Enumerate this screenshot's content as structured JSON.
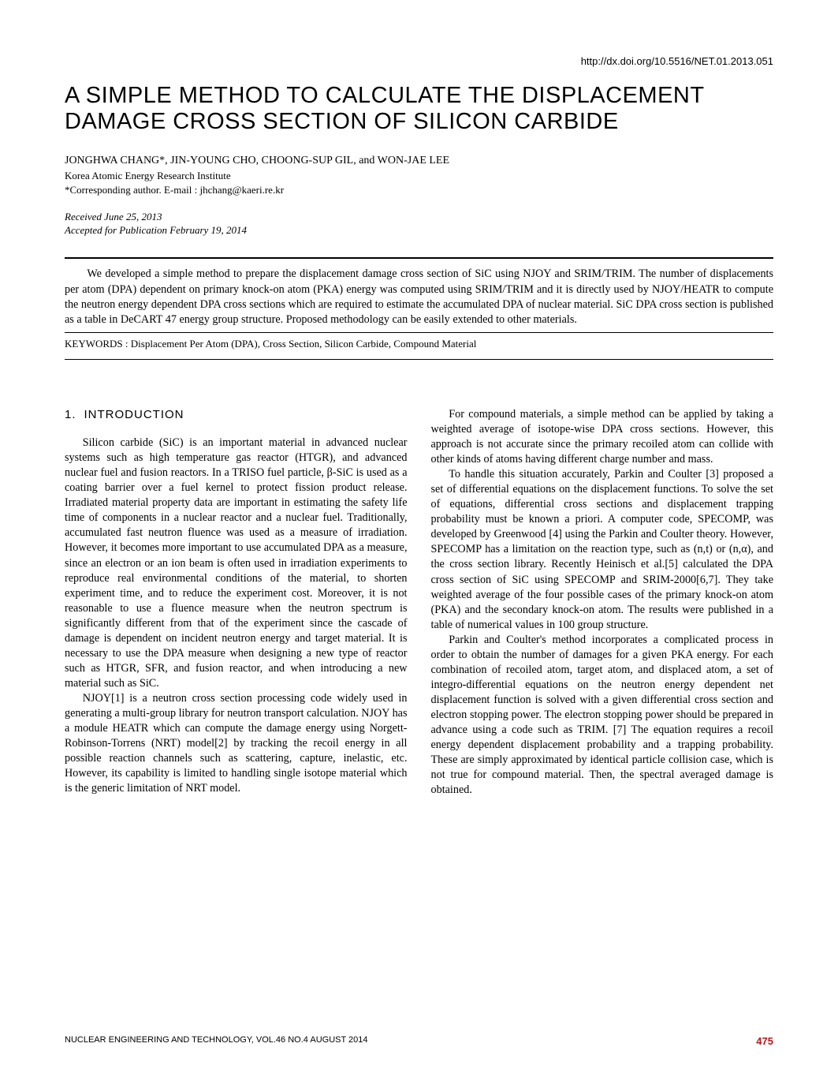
{
  "doi": "http://dx.doi.org/10.5516/NET.01.2013.051",
  "title": "A SIMPLE METHOD TO CALCULATE THE DISPLACEMENT DAMAGE CROSS SECTION OF SILICON CARBIDE",
  "authors": "JONGHWA CHANG*, JIN-YOUNG CHO, CHOONG-SUP GIL, and WON-JAE LEE",
  "affiliation": "Korea Atomic Energy Research Institute",
  "corresponding": "*Corresponding author. E-mail : jhchang@kaeri.re.kr",
  "received": "Received June 25, 2013",
  "accepted": "Accepted for Publication February 19, 2014",
  "abstract": "We developed a simple method to prepare the displacement damage cross section of SiC using NJOY and SRIM/TRIM. The number of displacements per atom (DPA) dependent on primary knock-on atom (PKA) energy was computed using SRIM/TRIM and it is directly used by NJOY/HEATR to compute the neutron energy dependent DPA cross sections which are required to estimate the accumulated DPA of nuclear material. SiC DPA cross section is published as a table in DeCART 47 energy group structure. Proposed methodology can be easily extended to other materials.",
  "keywords_label": "KEYWORDS : ",
  "keywords": "Displacement Per Atom (DPA), Cross Section, Silicon Carbide, Compound Material",
  "section1_num": "1.",
  "section1_title": "INTRODUCTION",
  "col1_p1": "Silicon carbide (SiC) is an important material in advanced nuclear systems such as high temperature gas reactor (HTGR), and advanced nuclear fuel and fusion reactors. In a TRISO fuel particle, β-SiC is used as a coating barrier over a fuel kernel to protect fission product release. Irradiated material property data are important in estimating the safety life time of components in a nuclear reactor and a nuclear fuel. Traditionally, accumulated fast neutron fluence was used as a measure of irradiation. However, it becomes more important to use accumulated DPA as a measure, since an electron or an ion beam is often used in irradiation experiments to reproduce real environmental conditions of the material, to shorten experiment time, and to reduce the experiment cost. Moreover, it is not reasonable to use a fluence measure when the neutron spectrum is significantly different from that of the experiment since the cascade of damage is dependent on incident neutron energy and target material. It is necessary to use the DPA measure when designing a new type of reactor such as HTGR, SFR, and fusion reactor, and when introducing a new material such as SiC.",
  "col1_p2": "NJOY[1] is a neutron cross section processing code widely used in generating a multi-group library for neutron transport calculation. NJOY has a module HEATR which can compute the damage energy using Norgett-Robinson-Torrens (NRT) model[2] by tracking the recoil energy in all possible reaction channels such as scattering, capture, inelastic, etc. However, its capability is limited to handling single isotope material which is the generic limitation of NRT model.",
  "col2_p1": "For compound materials, a simple method can be applied by taking a weighted average of isotope-wise DPA cross sections. However, this approach is not accurate since the primary recoiled atom can collide with other kinds of atoms having different charge number and mass.",
  "col2_p2": "To handle this situation accurately, Parkin and Coulter [3] proposed a set of differential equations on the displacement functions. To solve the set of equations, differential cross sections and displacement trapping probability must be known a priori. A computer code, SPECOMP, was developed by Greenwood [4] using the Parkin and Coulter theory. However, SPECOMP has a limitation on the reaction type, such as (n,t) or (n,α), and the cross section library. Recently Heinisch et al.[5] calculated the DPA cross section of SiC using SPECOMP and SRIM-2000[6,7]. They take weighted average of the four possible cases of the primary knock-on atom (PKA) and the secondary knock-on atom. The results were published in a table of numerical values in 100 group structure.",
  "col2_p3": "Parkin and Coulter's method incorporates a complicated process in order to obtain the number of damages for a given PKA energy. For each combination of recoiled atom, target atom, and displaced atom, a set of integro-differential equations on the neutron energy dependent net displacement function is solved with a given differential cross section and electron stopping power. The electron stopping power should be prepared in advance using a code such as TRIM. [7] The equation requires a recoil energy dependent displacement probability and a trapping probability. These are simply approximated by identical particle collision case, which is not true for compound material. Then, the spectral averaged damage is obtained.",
  "footer_journal": "NUCLEAR ENGINEERING AND TECHNOLOGY, VOL.46 NO.4 AUGUST 2014",
  "page_number": "475"
}
